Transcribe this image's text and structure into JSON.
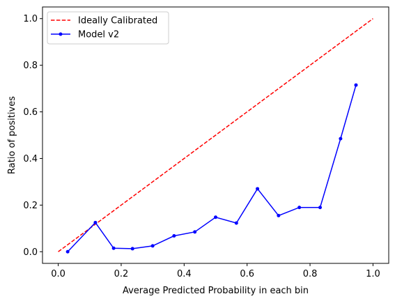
{
  "chart_data": {
    "type": "line",
    "xlabel": "Average Predicted Probability in each bin",
    "ylabel": "Ratio of positives",
    "xlim": [
      -0.05,
      1.05
    ],
    "ylim": [
      -0.05,
      1.05
    ],
    "x_ticks": [
      0.0,
      0.2,
      0.4,
      0.6,
      0.8,
      1.0
    ],
    "x_tick_labels": [
      "0.0",
      "0.2",
      "0.4",
      "0.6",
      "0.8",
      "1.0"
    ],
    "y_ticks": [
      0.0,
      0.2,
      0.4,
      0.6,
      0.8,
      1.0
    ],
    "y_tick_labels": [
      "0.0",
      "0.2",
      "0.4",
      "0.6",
      "0.8",
      "1.0"
    ],
    "grid": false,
    "legend_position": "upper-left",
    "series": [
      {
        "name": "Ideally Calibrated",
        "color": "#ff0000",
        "style": "dashed",
        "x": [
          0.0,
          1.0
        ],
        "y": [
          0.0,
          1.0
        ]
      },
      {
        "name": "Model v2",
        "color": "#0000ff",
        "style": "solid",
        "marker": "point",
        "x": [
          0.03,
          0.118,
          0.176,
          0.236,
          0.3,
          0.368,
          0.434,
          0.5,
          0.566,
          0.633,
          0.7,
          0.766,
          0.832,
          0.897,
          0.946
        ],
        "y": [
          0.0,
          0.125,
          0.015,
          0.013,
          0.025,
          0.068,
          0.085,
          0.148,
          0.123,
          0.27,
          0.155,
          0.19,
          0.19,
          0.485,
          0.715
        ]
      }
    ]
  }
}
